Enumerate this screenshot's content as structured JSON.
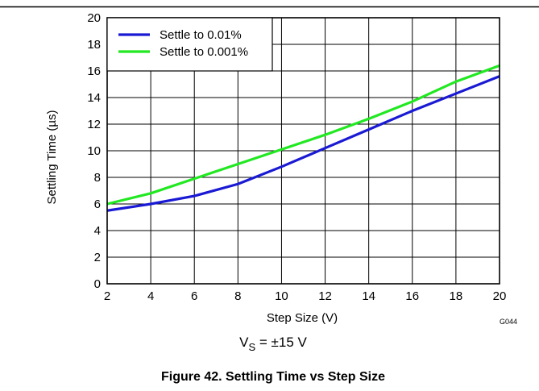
{
  "caption": "Figure 42. Settling Time vs Step Size",
  "condition": {
    "main": "V",
    "subscript": "S",
    "rest": " = ±15 V"
  },
  "figure_code": "G044",
  "chart_data": {
    "type": "line",
    "title": "",
    "xlabel": "Step Size (V)",
    "ylabel": "Settling Time (µs)",
    "xlim": [
      2,
      20
    ],
    "ylim": [
      0,
      20
    ],
    "xticks": [
      2,
      4,
      6,
      8,
      10,
      12,
      14,
      16,
      18,
      20
    ],
    "yticks": [
      0,
      2,
      4,
      6,
      8,
      10,
      12,
      14,
      16,
      18,
      20
    ],
    "grid": true,
    "legend_position": "top-left",
    "series": [
      {
        "name": "Settle to 0.01%",
        "color": "#1a1ad4",
        "x": [
          2,
          4,
          6,
          8,
          10,
          12,
          14,
          16,
          18,
          20
        ],
        "y": [
          5.5,
          6.0,
          6.6,
          7.5,
          8.8,
          10.2,
          11.6,
          13.0,
          14.3,
          15.6
        ]
      },
      {
        "name": "Settle to 0.001%",
        "color": "#22e822",
        "x": [
          2,
          4,
          6,
          8,
          10,
          12,
          14,
          16,
          18,
          20
        ],
        "y": [
          6.0,
          6.8,
          7.9,
          9.0,
          10.1,
          11.2,
          12.4,
          13.7,
          15.2,
          16.4
        ]
      }
    ]
  }
}
